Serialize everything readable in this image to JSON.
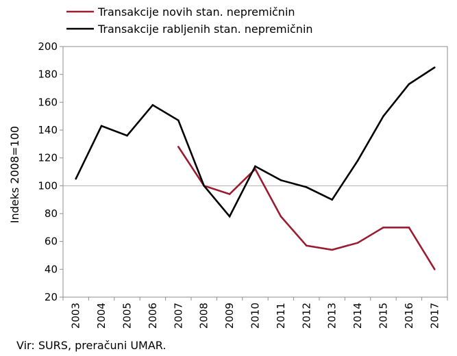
{
  "chart_data": {
    "type": "line",
    "x": [
      "2003",
      "2004",
      "2005",
      "2006",
      "2007",
      "2008",
      "2009",
      "2010",
      "2011",
      "2012",
      "2013",
      "2014",
      "2015",
      "2016",
      "2017"
    ],
    "series": [
      {
        "name": "Transakcije novih stan. nepremičnin",
        "color": "#9B1B30",
        "values": [
          null,
          null,
          null,
          null,
          128,
          100,
          94,
          112,
          78,
          57,
          54,
          59,
          70,
          70,
          40
        ]
      },
      {
        "name": "Transakcije rabljenih stan. nepremičnin",
        "color": "#000000",
        "values": [
          105,
          143,
          136,
          158,
          147,
          100,
          78,
          114,
          104,
          99,
          90,
          118,
          150,
          173,
          185
        ]
      }
    ],
    "ylabel": "Indeks 2008=100",
    "ylim": [
      20,
      200
    ],
    "yticks": [
      "20",
      "40",
      "60",
      "80",
      "100",
      "120",
      "140",
      "160",
      "180",
      "200"
    ],
    "reference_line": 100,
    "grid": false,
    "legend": "top-left",
    "source": "Vir: SURS, preračuni UMAR."
  }
}
